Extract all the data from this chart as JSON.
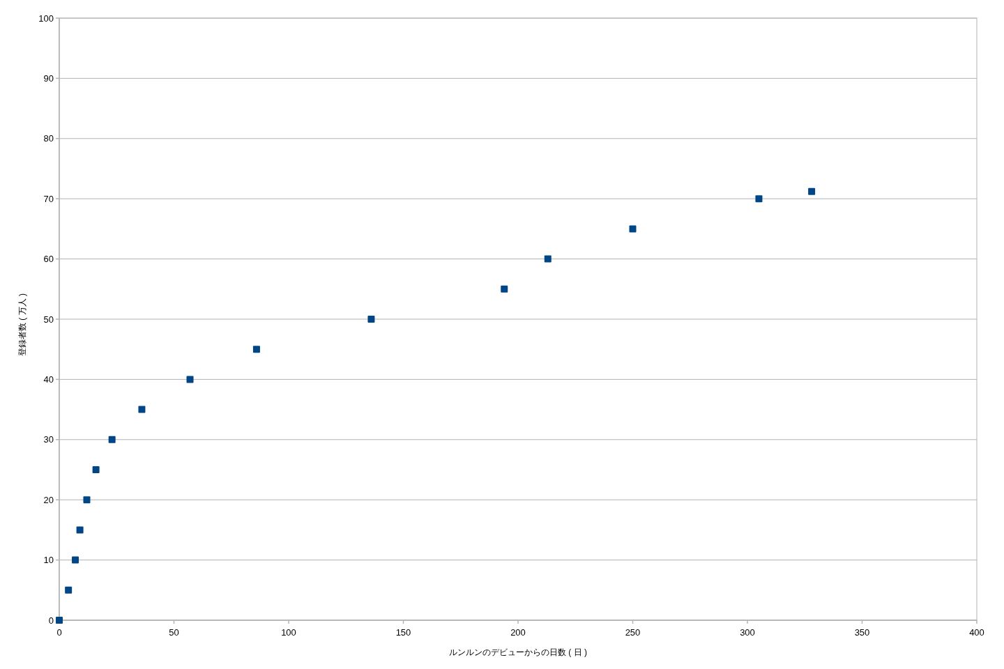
{
  "chart_data": {
    "type": "scatter",
    "xlabel": "ルンルンのデビューからの日数 ( 日 )",
    "ylabel": "登録者数 ( 万人 )",
    "x": [
      0,
      4,
      7,
      9,
      12,
      16,
      23,
      36,
      57,
      86,
      136,
      194,
      213,
      250,
      305,
      328
    ],
    "values": [
      0,
      5,
      10,
      15,
      20,
      25,
      30,
      35,
      40,
      45,
      50,
      55,
      60,
      65,
      70,
      71.2
    ],
    "color": "#004586",
    "marker": "square",
    "grid": "y",
    "xlim": [
      0,
      400
    ],
    "ylim": [
      0,
      100
    ],
    "xticks": [
      0,
      50,
      100,
      150,
      200,
      250,
      300,
      350,
      400
    ],
    "yticks": [
      0,
      10,
      20,
      30,
      40,
      50,
      60,
      70,
      80,
      90,
      100
    ]
  }
}
